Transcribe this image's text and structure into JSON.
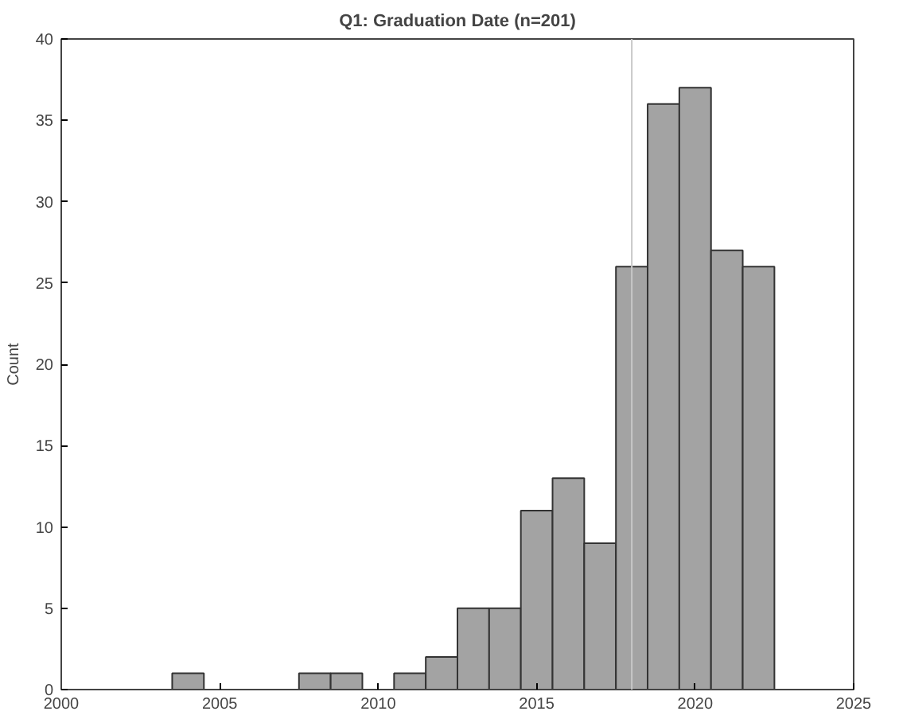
{
  "chart_data": {
    "type": "histogram",
    "title": "Q1: Graduation Date (n=201)",
    "ylabel": "Count",
    "bins": [
      2003.5,
      2004.5,
      2005.5,
      2006.5,
      2007.5,
      2008.5,
      2009.5,
      2010.5,
      2011.5,
      2012.5,
      2013.5,
      2014.5,
      2015.5,
      2016.5,
      2017.5,
      2018.5,
      2019.5,
      2020.5,
      2021.5,
      2022.5
    ],
    "values": [
      1,
      0,
      0,
      0,
      1,
      1,
      0,
      1,
      2,
      5,
      5,
      11,
      13,
      9,
      26,
      36,
      37,
      27,
      26
    ],
    "color": "#a3a3a3",
    "xlim": [
      2000,
      2025
    ],
    "xticks": [
      2000,
      2005,
      2010,
      2015,
      2020,
      2025
    ],
    "ylim": [
      0,
      40
    ],
    "yticks": [
      0,
      5,
      10,
      15,
      20,
      25,
      30,
      35,
      40
    ],
    "ref_lines": [
      {
        "axis": "x",
        "value": 2018,
        "color": "#c8c8c8"
      }
    ],
    "grid": false
  }
}
